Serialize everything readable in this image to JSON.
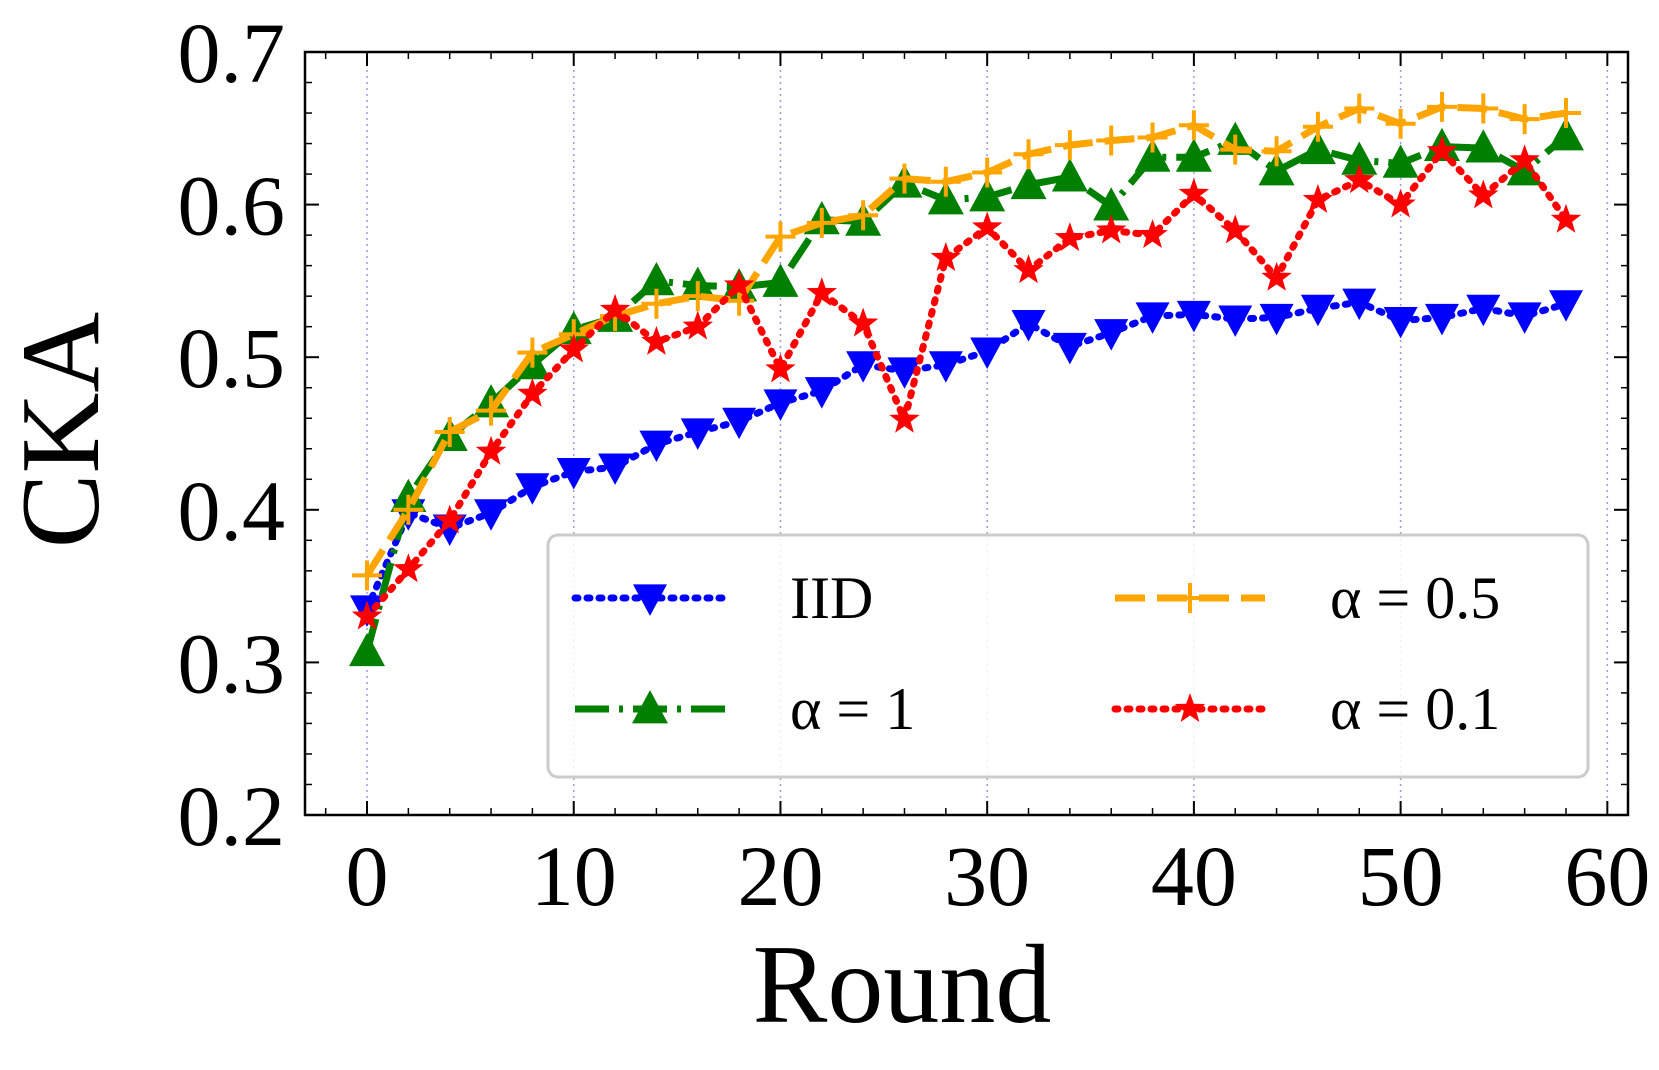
{
  "chart_data": {
    "type": "line",
    "title": "",
    "xlabel": "Round",
    "ylabel": "CKA",
    "xlim": [
      -3,
      61
    ],
    "ylim": [
      0.2,
      0.7
    ],
    "xticks": [
      0,
      10,
      20,
      30,
      40,
      50,
      60
    ],
    "yticks": [
      0.2,
      0.3,
      0.4,
      0.5,
      0.6,
      0.7
    ],
    "xtick_labels": [
      "0",
      "10",
      "20",
      "30",
      "40",
      "50",
      "60"
    ],
    "ytick_labels": [
      "0.2",
      "0.3",
      "0.4",
      "0.5",
      "0.6",
      "0.7"
    ],
    "grid": "vertical dotted",
    "legend_position": "lower-right",
    "x": [
      0,
      2,
      4,
      6,
      8,
      10,
      12,
      14,
      16,
      18,
      20,
      22,
      24,
      26,
      28,
      30,
      32,
      34,
      36,
      38,
      40,
      42,
      44,
      46,
      48,
      50,
      52,
      54,
      56,
      58
    ],
    "series": [
      {
        "name": "IID",
        "legend_label": "IID",
        "color": "#0000ff",
        "linestyle": "dotted",
        "marker": "triangle-down",
        "values": [
          0.335,
          0.398,
          0.388,
          0.398,
          0.415,
          0.425,
          0.428,
          0.443,
          0.451,
          0.458,
          0.47,
          0.478,
          0.495,
          0.491,
          0.495,
          0.504,
          0.522,
          0.507,
          0.516,
          0.527,
          0.528,
          0.525,
          0.526,
          0.532,
          0.536,
          0.524,
          0.526,
          0.532,
          0.527,
          0.535
        ]
      },
      {
        "name": "alpha=1",
        "legend_label": "α = 1",
        "color": "#008000",
        "linestyle": "dashdot",
        "marker": "triangle-up",
        "values": [
          0.307,
          0.408,
          0.448,
          0.47,
          0.495,
          0.518,
          0.526,
          0.55,
          0.547,
          0.546,
          0.549,
          0.59,
          0.589,
          0.614,
          0.603,
          0.605,
          0.613,
          0.618,
          0.599,
          0.631,
          0.631,
          0.642,
          0.622,
          0.636,
          0.629,
          0.627,
          0.638,
          0.637,
          0.622,
          0.645
        ]
      },
      {
        "name": "alpha=0.5",
        "legend_label": "α = 0.5",
        "color": "#ffa500",
        "linestyle": "dashed",
        "marker": "plus",
        "values": [
          0.357,
          0.4,
          0.451,
          0.465,
          0.503,
          0.515,
          0.527,
          0.535,
          0.54,
          0.537,
          0.579,
          0.588,
          0.593,
          0.617,
          0.615,
          0.621,
          0.633,
          0.639,
          0.642,
          0.644,
          0.652,
          0.636,
          0.635,
          0.651,
          0.663,
          0.653,
          0.664,
          0.663,
          0.656,
          0.66
        ]
      },
      {
        "name": "alpha=0.1",
        "legend_label": "α = 0.1",
        "color": "#ff0000",
        "linestyle": "dotted",
        "marker": "star",
        "values": [
          0.33,
          0.361,
          0.393,
          0.438,
          0.476,
          0.505,
          0.531,
          0.51,
          0.52,
          0.547,
          0.492,
          0.542,
          0.522,
          0.459,
          0.565,
          0.585,
          0.557,
          0.578,
          0.583,
          0.58,
          0.607,
          0.583,
          0.552,
          0.603,
          0.616,
          0.6,
          0.635,
          0.606,
          0.629,
          0.59
        ]
      }
    ]
  }
}
